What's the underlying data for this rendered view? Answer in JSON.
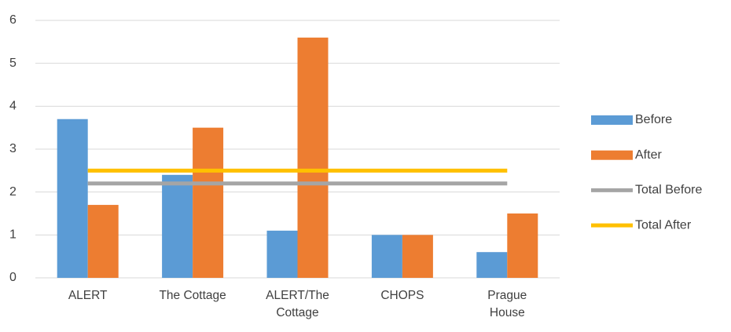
{
  "chart_data": {
    "type": "bar",
    "categories": [
      "ALERT",
      "The Cottage",
      "ALERT/The Cottage",
      "CHOPS",
      "Prague House"
    ],
    "series": [
      {
        "name": "Before",
        "type": "bar",
        "color": "#5b9bd5",
        "values": [
          3.7,
          2.4,
          1.1,
          1.0,
          0.6
        ]
      },
      {
        "name": "After",
        "type": "bar",
        "color": "#ed7d31",
        "values": [
          1.7,
          3.5,
          5.6,
          1.0,
          1.5
        ]
      },
      {
        "name": "Total Before",
        "type": "line",
        "color": "#a5a5a5",
        "values": [
          2.2,
          2.2,
          2.2,
          2.2,
          2.2
        ]
      },
      {
        "name": "Total After",
        "type": "line",
        "color": "#ffc000",
        "values": [
          2.5,
          2.5,
          2.5,
          2.5,
          2.5
        ]
      }
    ],
    "ylim": [
      0,
      6
    ],
    "yticks": [
      0,
      1,
      2,
      3,
      4,
      5,
      6
    ],
    "grid": true,
    "legend": "right"
  }
}
